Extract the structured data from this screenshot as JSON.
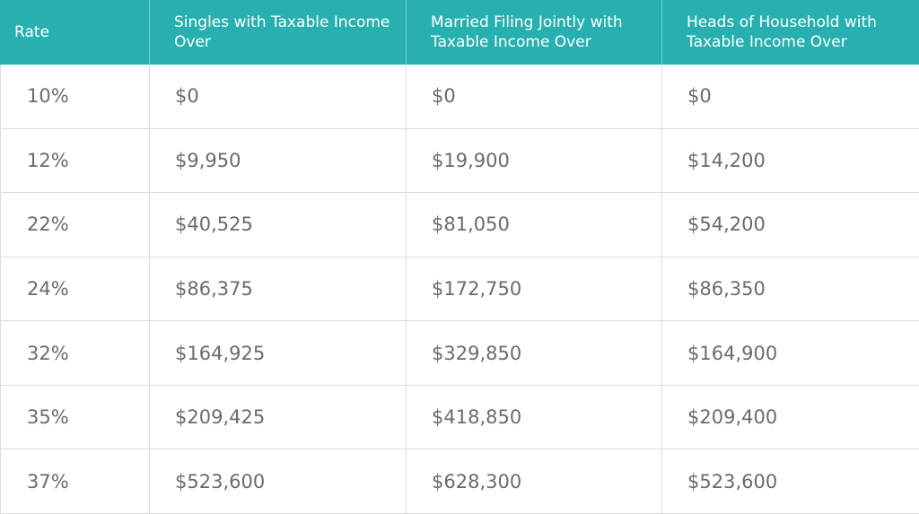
{
  "table": {
    "header": [
      "Rate",
      "Singles with Taxable Income Over",
      "Married Filing Jointly with Taxable Income Over",
      "Heads of Household with Taxable Income Over"
    ],
    "rows": [
      [
        "10%",
        "$0",
        "$0",
        "$0"
      ],
      [
        "12%",
        "$9,950",
        "$19,900",
        "$14,200"
      ],
      [
        "22%",
        "$40,525",
        "$81,050",
        "$54,200"
      ],
      [
        "24%",
        "$86,375",
        "$172,750",
        "$86,350"
      ],
      [
        "32%",
        "$164,925",
        "$329,850",
        "$164,900"
      ],
      [
        "35%",
        "$209,425",
        "$418,850",
        "$209,400"
      ],
      [
        "37%",
        "$523,600",
        "$628,300",
        "$523,600"
      ]
    ]
  }
}
